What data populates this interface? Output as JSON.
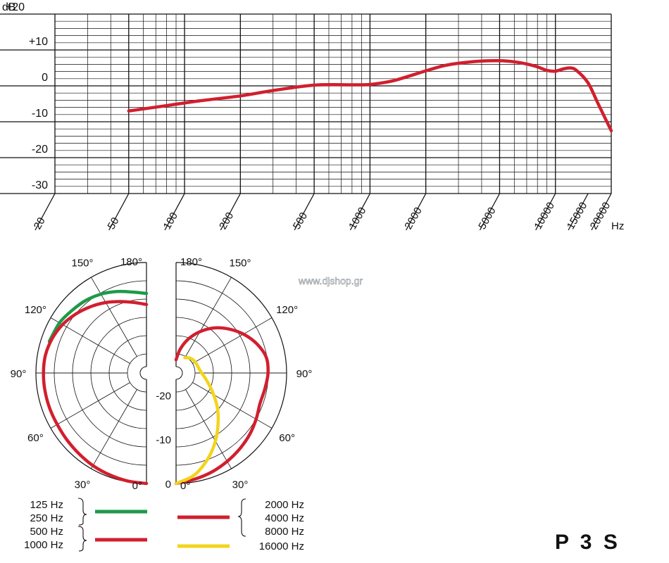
{
  "chart_data": [
    {
      "type": "line",
      "title": "",
      "xlabel": "Hz",
      "ylabel": "dB",
      "xscale": "log",
      "xlim": [
        20,
        20000
      ],
      "ylim": [
        -30,
        20
      ],
      "grid": true,
      "y_ticks": [
        {
          "value": 20,
          "label": "+20"
        },
        {
          "value": 10,
          "label": "+10"
        },
        {
          "value": 0,
          "label": "0"
        },
        {
          "value": -10,
          "label": "-10"
        },
        {
          "value": -20,
          "label": "-20"
        },
        {
          "value": -30,
          "label": "-30"
        }
      ],
      "x_ticks": [
        "20",
        "50",
        "100",
        "200",
        "500",
        "1000",
        "2000",
        "5000",
        "10000",
        "15000",
        "20000"
      ],
      "series": [
        {
          "color": "#d11f2e",
          "x": [
            50,
            80,
            120,
            200,
            300,
            500,
            800,
            1000,
            1300,
            1600,
            2000,
            2500,
            3000,
            4000,
            5000,
            6000,
            7000,
            8000,
            9000,
            10000,
            11000,
            12000,
            13000,
            15000,
            17000,
            20000
          ],
          "y": [
            -7,
            -5.5,
            -4.2,
            -2.8,
            -1.3,
            0.2,
            0.3,
            0.4,
            1.3,
            2.6,
            4.2,
            5.6,
            6.3,
            6.9,
            7.0,
            6.7,
            6.1,
            5.3,
            4.3,
            4.1,
            4.7,
            5.0,
            4.3,
            0.8,
            -5.0,
            -12.5
          ]
        }
      ]
    },
    {
      "type": "polar",
      "title": "",
      "unit": "dB",
      "rlim": [
        -25,
        0
      ],
      "radial_ticks": [
        "-20",
        "-10",
        "0"
      ],
      "angle_labels": [
        {
          "value": 0,
          "label": "0°"
        },
        {
          "value": 30,
          "label": "30°"
        },
        {
          "value": 60,
          "label": "60°"
        },
        {
          "value": 90,
          "label": "90°"
        },
        {
          "value": 120,
          "label": "120°"
        },
        {
          "value": 150,
          "label": "150°"
        },
        {
          "value": 180,
          "label": "180°"
        }
      ],
      "series": [
        {
          "side": "left",
          "color": "#1e9a48",
          "legend_labels": [
            "125 Hz",
            "250 Hz"
          ],
          "angles": [
            108,
            120,
            130,
            140,
            150,
            160,
            170,
            180
          ],
          "levels_db": [
            -1.9,
            -2.3,
            -3.0,
            -3.6,
            -4.4,
            -5.4,
            -6.4,
            -7.0
          ]
        },
        {
          "side": "left",
          "color": "#d11f2e",
          "legend_labels": [
            "500 Hz",
            "1000 Hz"
          ],
          "angles": [
            0,
            10,
            20,
            30,
            40,
            50,
            60,
            70,
            80,
            90,
            100,
            110,
            120,
            130,
            140,
            150,
            160,
            170,
            180
          ],
          "levels_db": [
            0,
            -0.2,
            -0.5,
            -0.8,
            -1.2,
            -1.5,
            -1.7,
            -1.7,
            -1.7,
            -1.7,
            -1.8,
            -2.3,
            -3.1,
            -4.2,
            -5.4,
            -6.6,
            -7.8,
            -8.8,
            -9.5
          ]
        },
        {
          "side": "right",
          "color": "#d11f2e",
          "legend_labels": [
            "2000 Hz",
            "4000 Hz",
            "8000 Hz"
          ],
          "angles": [
            0,
            10,
            20,
            30,
            40,
            50,
            60,
            70,
            80,
            90,
            100,
            110,
            120,
            130,
            140,
            150,
            160,
            170,
            180
          ],
          "levels_db": [
            0,
            -0.6,
            -1.2,
            -1.9,
            -2.6,
            -3.3,
            -4.1,
            -4.8,
            -4.6,
            -4.2,
            -4.3,
            -5.6,
            -7.4,
            -9.5,
            -11.7,
            -14.2,
            -16.8,
            -19.5,
            -22
          ]
        },
        {
          "side": "right",
          "color": "#f3d41c",
          "legend_labels": [
            "16000 Hz"
          ],
          "angles": [
            0,
            10,
            20,
            30,
            40,
            50,
            60,
            70,
            80,
            90,
            100,
            110,
            120,
            130,
            140,
            150
          ],
          "levels_db": [
            0,
            -1.5,
            -4.2,
            -7.2,
            -10.2,
            -12.8,
            -15.2,
            -17.0,
            -18.3,
            -19.2,
            -19.7,
            -19.9,
            -20.0,
            -20.2,
            -20.5,
            -21.0
          ]
        }
      ]
    }
  ],
  "watermark": "www.djshop.gr",
  "model": "P 3 S",
  "legend": {
    "left_group_1": [
      "125 Hz",
      "250 Hz"
    ],
    "left_group_2": [
      "500 Hz",
      "1000 Hz"
    ],
    "right_group": [
      "2000 Hz",
      "4000 Hz",
      "8000 Hz"
    ],
    "right_single": "16000 Hz"
  },
  "colors": {
    "red": "#d11f2e",
    "green": "#1e9a48",
    "yellow": "#f3d41c",
    "grid": "#111111"
  }
}
